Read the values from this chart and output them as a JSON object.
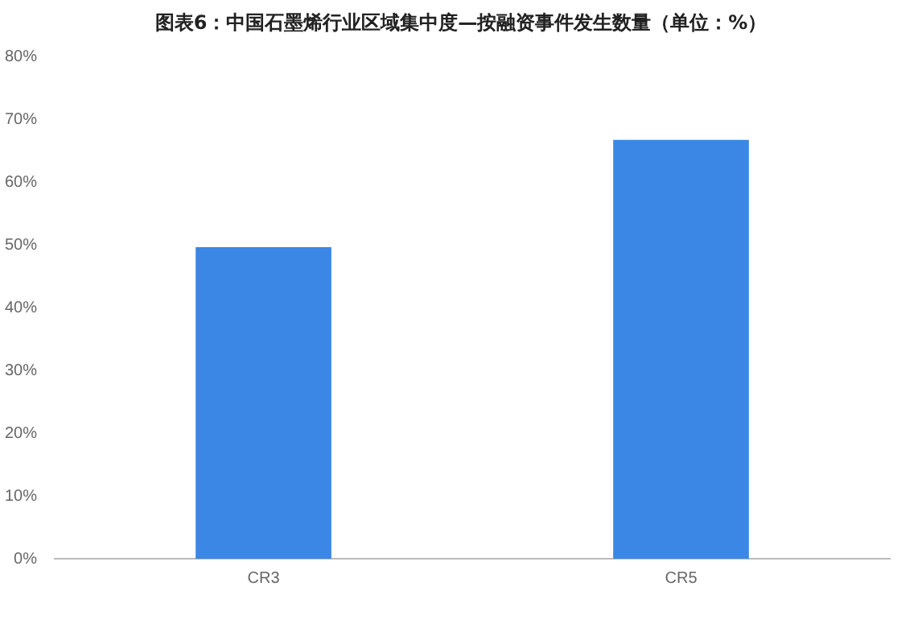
{
  "chart_data": {
    "type": "bar",
    "title": "图表6：中国石墨烯行业区域集中度—按融资事件发生数量（单位：%）",
    "categories": [
      "CR3",
      "CR5"
    ],
    "values": [
      49.6,
      66.7
    ],
    "color": "#3a87e6",
    "ylim": [
      0,
      80
    ],
    "yticks": [
      {
        "value": 0,
        "label": "0%"
      },
      {
        "value": 10,
        "label": "10%"
      },
      {
        "value": 20,
        "label": "20%"
      },
      {
        "value": 30,
        "label": "30%"
      },
      {
        "value": 40,
        "label": "40%"
      },
      {
        "value": 50,
        "label": "50%"
      },
      {
        "value": 60,
        "label": "60%"
      },
      {
        "value": 70,
        "label": "70%"
      },
      {
        "value": 80,
        "label": "80%"
      }
    ],
    "grid": false
  }
}
